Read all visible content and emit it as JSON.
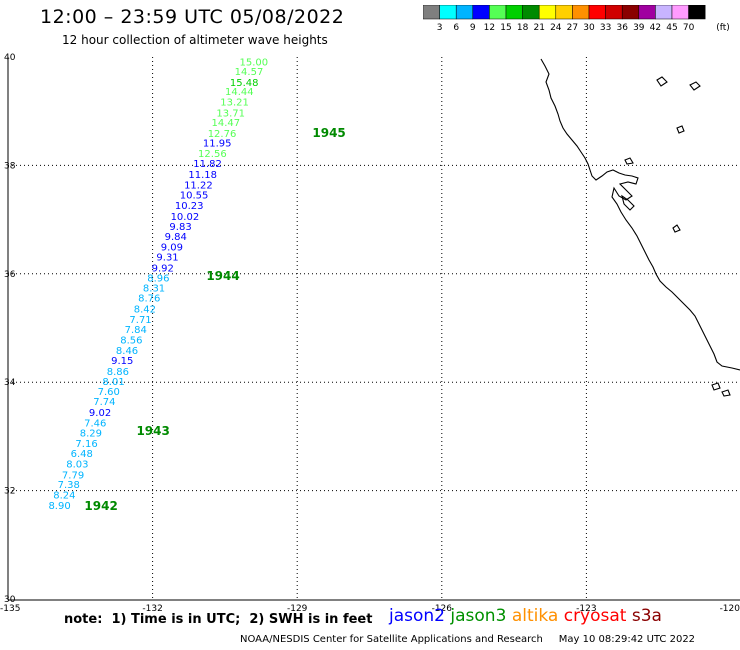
{
  "title": {
    "time_range": "12:00 – 23:59 UTC 05/08/2022",
    "subtitle": "12 hour collection of altimeter wave heights"
  },
  "colorbar": {
    "labels": [
      "3",
      "6",
      "9",
      "12",
      "15",
      "18",
      "21",
      "24",
      "27",
      "30",
      "33",
      "36",
      "39",
      "42",
      "45",
      "70"
    ],
    "unit": "(ft)",
    "colors": [
      "#7f7f7f",
      "#00ffff",
      "#00b4ff",
      "#0000ff",
      "#55ff55",
      "#00d000",
      "#008a00",
      "#ffff00",
      "#ffd000",
      "#ff9000",
      "#ff0000",
      "#d00000",
      "#8a0000",
      "#a000a0",
      "#c8b4ff",
      "#ff9bff",
      "#000000"
    ]
  },
  "axes": {
    "lon_ticks": [
      "-135",
      "-132",
      "-129",
      "-126",
      "-123",
      "-120"
    ],
    "lat_ticks": [
      "40",
      "38",
      "36",
      "34",
      "32",
      "30"
    ]
  },
  "swh_labels": [
    {
      "lon": -129.9,
      "lat": 39.92,
      "text": "15.00",
      "color": "#55ff55"
    },
    {
      "lon": -130.0,
      "lat": 39.74,
      "text": "14.57",
      "color": "#55ff55"
    },
    {
      "lon": -130.1,
      "lat": 39.54,
      "text": "15.48",
      "color": "#00d000"
    },
    {
      "lon": -130.2,
      "lat": 39.37,
      "text": "14.44",
      "color": "#55ff55"
    },
    {
      "lon": -130.3,
      "lat": 39.18,
      "text": "13.21",
      "color": "#55ff55"
    },
    {
      "lon": -130.38,
      "lat": 38.98,
      "text": "13.71",
      "color": "#55ff55"
    },
    {
      "lon": -130.48,
      "lat": 38.8,
      "text": "14.47",
      "color": "#55ff55"
    },
    {
      "lon": -130.56,
      "lat": 38.6,
      "text": "12.76",
      "color": "#55ff55"
    },
    {
      "lon": -130.66,
      "lat": 38.42,
      "text": "11.95",
      "color": "#0000ff"
    },
    {
      "lon": -130.76,
      "lat": 38.23,
      "text": "12.56",
      "color": "#55ff55"
    },
    {
      "lon": -130.86,
      "lat": 38.04,
      "text": "11.82",
      "color": "#0000ff"
    },
    {
      "lon": -130.96,
      "lat": 37.84,
      "text": "11.18",
      "color": "#0000ff"
    },
    {
      "lon": -131.05,
      "lat": 37.65,
      "text": "11.22",
      "color": "#0000ff"
    },
    {
      "lon": -131.14,
      "lat": 37.46,
      "text": "10.55",
      "color": "#0000ff"
    },
    {
      "lon": -131.24,
      "lat": 37.27,
      "text": "10.23",
      "color": "#0000ff"
    },
    {
      "lon": -131.33,
      "lat": 37.07,
      "text": "10.02",
      "color": "#0000ff"
    },
    {
      "lon": -131.42,
      "lat": 36.88,
      "text": "9.83",
      "color": "#0000ff"
    },
    {
      "lon": -131.52,
      "lat": 36.7,
      "text": "9.84",
      "color": "#0000ff"
    },
    {
      "lon": -131.6,
      "lat": 36.5,
      "text": "9.09",
      "color": "#0000ff"
    },
    {
      "lon": -131.69,
      "lat": 36.32,
      "text": "9.31",
      "color": "#0000ff"
    },
    {
      "lon": -131.79,
      "lat": 36.12,
      "text": "9.92",
      "color": "#0000ff"
    },
    {
      "lon": -131.88,
      "lat": 35.93,
      "text": "8.96",
      "color": "#00b4ff"
    },
    {
      "lon": -131.97,
      "lat": 35.75,
      "text": "8.31",
      "color": "#00b4ff"
    },
    {
      "lon": -132.07,
      "lat": 35.56,
      "text": "8.76",
      "color": "#00b4ff"
    },
    {
      "lon": -132.16,
      "lat": 35.36,
      "text": "8.42",
      "color": "#00b4ff"
    },
    {
      "lon": -132.25,
      "lat": 35.17,
      "text": "7.71",
      "color": "#00b4ff"
    },
    {
      "lon": -132.35,
      "lat": 34.98,
      "text": "7.84",
      "color": "#00b4ff"
    },
    {
      "lon": -132.44,
      "lat": 34.79,
      "text": "8.56",
      "color": "#00b4ff"
    },
    {
      "lon": -132.53,
      "lat": 34.59,
      "text": "8.46",
      "color": "#00b4ff"
    },
    {
      "lon": -132.63,
      "lat": 34.41,
      "text": "9.15",
      "color": "#0000ff"
    },
    {
      "lon": -132.72,
      "lat": 34.21,
      "text": "8.86",
      "color": "#00b4ff"
    },
    {
      "lon": -132.81,
      "lat": 34.02,
      "text": "8.01",
      "color": "#00b4ff"
    },
    {
      "lon": -132.91,
      "lat": 33.84,
      "text": "7.60",
      "color": "#00b4ff"
    },
    {
      "lon": -133.0,
      "lat": 33.65,
      "text": "7.74",
      "color": "#00b4ff"
    },
    {
      "lon": -133.09,
      "lat": 33.45,
      "text": "9.02",
      "color": "#0000ff"
    },
    {
      "lon": -133.19,
      "lat": 33.26,
      "text": "7.46",
      "color": "#00b4ff"
    },
    {
      "lon": -133.28,
      "lat": 33.07,
      "text": "8.29",
      "color": "#00b4ff"
    },
    {
      "lon": -133.37,
      "lat": 32.88,
      "text": "7.16",
      "color": "#00b4ff"
    },
    {
      "lon": -133.47,
      "lat": 32.69,
      "text": "6.48",
      "color": "#00b4ff"
    },
    {
      "lon": -133.56,
      "lat": 32.5,
      "text": "8.03",
      "color": "#00b4ff"
    },
    {
      "lon": -133.65,
      "lat": 32.3,
      "text": "7.79",
      "color": "#00b4ff"
    },
    {
      "lon": -133.74,
      "lat": 32.12,
      "text": "7.38",
      "color": "#00b4ff"
    },
    {
      "lon": -133.83,
      "lat": 31.93,
      "text": "8.24",
      "color": "#00b4ff"
    },
    {
      "lon": -133.93,
      "lat": 31.73,
      "text": "8.90",
      "color": "#00b4ff"
    }
  ],
  "time_labels": [
    {
      "lon": -129.1,
      "lat": 38.62,
      "text": "1945"
    },
    {
      "lon": -131.3,
      "lat": 35.98,
      "text": "1944"
    },
    {
      "lon": -132.75,
      "lat": 33.12,
      "text": "1943"
    },
    {
      "lon": -133.83,
      "lat": 31.73,
      "text": "1942"
    }
  ],
  "note": "note:  1) Time is in UTC;  2) SWH is in feet",
  "satellites": [
    {
      "name": "jason2",
      "color": "#0000ff"
    },
    {
      "name": "jason3",
      "color": "#009000"
    },
    {
      "name": "altika",
      "color": "#ff9000"
    },
    {
      "name": "cryosat",
      "color": "#ff0000"
    },
    {
      "name": "s3a",
      "color": "#8a0000"
    }
  ],
  "footer": "NOAA/NESDIS Center for Satellite Applications and Research     May 10 08:29:42 UTC 2022"
}
